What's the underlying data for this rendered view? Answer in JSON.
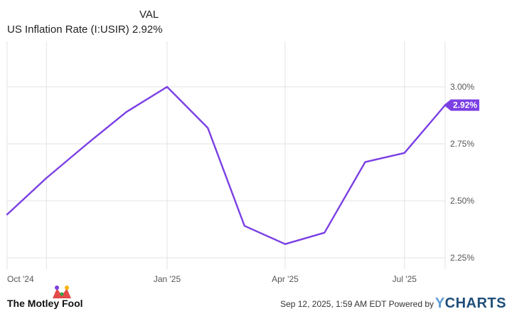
{
  "legend": {
    "header": "VAL",
    "series_name": "US Inflation Rate (I:USIR)",
    "series_value": "2.92%"
  },
  "footer": {
    "brand": "The Motley Fool",
    "timestamp": "Sep 12, 2025, 1:59 AM EDT",
    "powered_by": "Powered by",
    "provider": "CHARTS",
    "provider_prefix": "Y"
  },
  "colors": {
    "line": "#7b3fe4",
    "grid": "#e3e3e3",
    "badge": "#7b3fe4"
  },
  "chart_data": {
    "type": "line",
    "title": "",
    "xlabel": "",
    "ylabel": "",
    "x": [
      "2024-09-01",
      "2024-10-01",
      "2024-11-01",
      "2024-12-01",
      "2025-01-01",
      "2025-02-01",
      "2025-03-01",
      "2025-04-01",
      "2025-05-01",
      "2025-06-01",
      "2025-07-01",
      "2025-08-01"
    ],
    "series": [
      {
        "name": "US Inflation Rate (I:USIR)",
        "values": [
          2.44,
          2.6,
          2.75,
          2.89,
          3.0,
          2.82,
          2.39,
          2.31,
          2.36,
          2.67,
          2.71,
          2.92
        ]
      }
    ],
    "x_ticks": [
      {
        "date": "2024-10-01",
        "label": "Oct '24"
      },
      {
        "date": "2025-01-01",
        "label": "Jan '25"
      },
      {
        "date": "2025-04-01",
        "label": "Apr '25"
      },
      {
        "date": "2025-07-01",
        "label": "Jul '25"
      }
    ],
    "y_ticks": [
      {
        "value": 2.25,
        "label": "2.25%"
      },
      {
        "value": 2.5,
        "label": "2.50%"
      },
      {
        "value": 2.75,
        "label": "2.75%"
      },
      {
        "value": 3.0,
        "label": "3.00%"
      }
    ],
    "ylim": [
      2.2,
      3.2
    ],
    "last_value_label": "2.92%",
    "grid": true
  }
}
